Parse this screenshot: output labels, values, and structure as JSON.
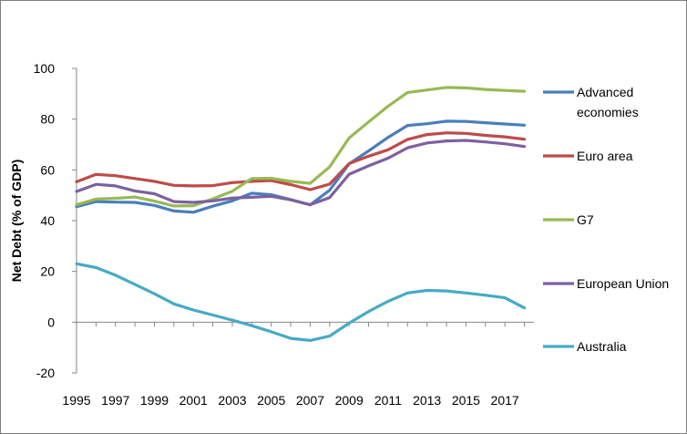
{
  "chart_data": {
    "type": "line",
    "title": "",
    "xlabel": "",
    "ylabel": "Net Debt (% of GDP)",
    "ylim": [
      -20,
      100
    ],
    "yticks": [
      -20,
      0,
      20,
      40,
      60,
      80,
      100
    ],
    "x": [
      1995,
      1996,
      1997,
      1998,
      1999,
      2000,
      2001,
      2002,
      2003,
      2004,
      2005,
      2006,
      2007,
      2008,
      2009,
      2010,
      2011,
      2012,
      2013,
      2014,
      2015,
      2016,
      2017,
      2018
    ],
    "xtick_labels": [
      "1995",
      "1997",
      "1999",
      "2001",
      "2003",
      "2005",
      "2007",
      "2009",
      "2011",
      "2013",
      "2015",
      "2017"
    ],
    "grid": false,
    "legend_position": "right",
    "series": [
      {
        "name": "Advanced economies",
        "color": "#4a7ebb",
        "legend_lines": [
          "Advanced",
          "economies"
        ],
        "values": [
          45.5,
          47.5,
          47.3,
          47.2,
          46.0,
          43.8,
          43.3,
          45.7,
          47.8,
          50.8,
          50.2,
          48.3,
          46.2,
          52.0,
          62.4,
          67.5,
          72.8,
          77.5,
          78.2,
          79.2,
          79.1,
          78.6,
          78.1,
          77.6
        ]
      },
      {
        "name": "Euro area",
        "color": "#be4b48",
        "legend_lines": [
          "Euro area"
        ],
        "values": [
          55.3,
          58.2,
          57.7,
          56.6,
          55.5,
          53.9,
          53.7,
          53.8,
          55.0,
          55.5,
          55.8,
          54.2,
          52.2,
          54.4,
          62.5,
          65.4,
          67.9,
          72.0,
          73.9,
          74.6,
          74.4,
          73.6,
          73.0,
          72.1
        ]
      },
      {
        "name": "G7",
        "color": "#98b954",
        "legend_lines": [
          "G7"
        ],
        "values": [
          46.2,
          48.5,
          48.8,
          49.3,
          47.7,
          45.8,
          45.9,
          48.6,
          51.6,
          56.6,
          56.7,
          55.5,
          54.7,
          61.2,
          72.6,
          78.9,
          85.1,
          90.5,
          91.5,
          92.5,
          92.3,
          91.7,
          91.3,
          91.0
        ]
      },
      {
        "name": "European Union",
        "color": "#7d60a0",
        "legend_lines": [
          "European Union"
        ],
        "values": [
          51.5,
          54.3,
          53.7,
          51.7,
          50.6,
          47.5,
          47.2,
          47.8,
          48.9,
          49.2,
          49.6,
          48.2,
          46.3,
          49.1,
          58.3,
          61.6,
          64.6,
          68.7,
          70.6,
          71.4,
          71.6,
          71.0,
          70.3,
          69.2
        ]
      },
      {
        "name": "Australia",
        "color": "#46aac5",
        "legend_lines": [
          "Australia"
        ],
        "values": [
          23.0,
          21.5,
          18.5,
          14.9,
          11.2,
          7.2,
          4.8,
          2.8,
          0.8,
          -1.4,
          -3.8,
          -6.4,
          -7.2,
          -5.5,
          -0.4,
          4.2,
          8.2,
          11.5,
          12.5,
          12.3,
          11.5,
          10.6,
          9.6,
          5.6
        ]
      }
    ]
  }
}
